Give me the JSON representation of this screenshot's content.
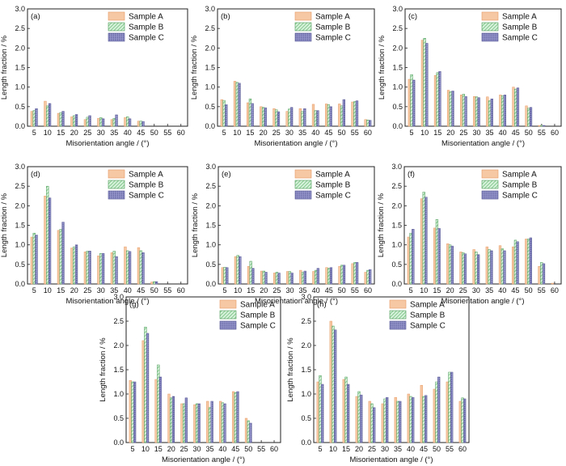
{
  "figure": {
    "legend_entries": [
      "Sample A",
      "Sample B",
      "Sample C"
    ]
  },
  "colors": {
    "sample_a": "#f6c8a4",
    "sample_a_stroke": "#e79a63",
    "sample_b_light": "#d8f1dc",
    "sample_b_stripe": "#6fbf7a",
    "sample_b_stroke": "#4a9a56",
    "sample_c_base": "#9a9ad0",
    "sample_c_dot": "#4e4e8c",
    "sample_c_stroke": "#545494",
    "axis": "#222222"
  },
  "chart_data": [
    {
      "type": "bar",
      "panel": "(a)",
      "categories": [
        "5",
        "10",
        "15",
        "20",
        "25",
        "30",
        "35",
        "40",
        "45",
        "50",
        "55",
        "60"
      ],
      "xlabel": "Misorientation angle / (°)",
      "ylabel": "Length fraction / %",
      "ylim": [
        0,
        3.0
      ],
      "yticks": [
        "0.0",
        "0.5",
        "1.0",
        "1.5",
        "2.0",
        "2.5",
        "3.0"
      ],
      "grid": false,
      "legend": "top-right",
      "series": [
        {
          "name": "Sample A",
          "values": [
            0.38,
            0.64,
            0.33,
            0.24,
            0.17,
            0.2,
            0.17,
            0.22,
            0.13,
            0,
            0,
            0
          ]
        },
        {
          "name": "Sample B",
          "values": [
            0.4,
            0.52,
            0.35,
            0.27,
            0.23,
            0.22,
            0.2,
            0.24,
            0.13,
            0,
            0,
            0
          ]
        },
        {
          "name": "Sample C",
          "values": [
            0.45,
            0.58,
            0.38,
            0.3,
            0.27,
            0.19,
            0.29,
            0.19,
            0.12,
            0,
            0,
            0
          ]
        }
      ]
    },
    {
      "type": "bar",
      "panel": "(b)",
      "categories": [
        "5",
        "10",
        "15",
        "20",
        "25",
        "30",
        "35",
        "40",
        "45",
        "50",
        "55",
        "60"
      ],
      "xlabel": "Misorientation angle / (°)",
      "ylabel": "Length fraction / %",
      "ylim": [
        0,
        3.0
      ],
      "yticks": [
        "0.0",
        "0.5",
        "1.0",
        "1.5",
        "2.0",
        "2.5",
        "3.0"
      ],
      "grid": false,
      "legend": "top-right",
      "series": [
        {
          "name": "Sample A",
          "values": [
            0.68,
            1.15,
            0.6,
            0.5,
            0.45,
            0.38,
            0.45,
            0.56,
            0.57,
            0.57,
            0.62,
            0.17
          ]
        },
        {
          "name": "Sample B",
          "values": [
            0.66,
            1.12,
            0.7,
            0.48,
            0.42,
            0.44,
            0.38,
            0.4,
            0.55,
            0.52,
            0.63,
            0.16
          ]
        },
        {
          "name": "Sample C",
          "values": [
            0.55,
            1.1,
            0.58,
            0.47,
            0.37,
            0.48,
            0.45,
            0.4,
            0.5,
            0.68,
            0.65,
            0.15
          ]
        }
      ]
    },
    {
      "type": "bar",
      "panel": "(c)",
      "categories": [
        "5",
        "10",
        "15",
        "20",
        "25",
        "30",
        "35",
        "40",
        "45",
        "50",
        "55",
        "60"
      ],
      "xlabel": "Misorientation angle / (°)",
      "ylabel": "Length fraction / %",
      "ylim": [
        0,
        3.0
      ],
      "yticks": [
        "0.0",
        "0.5",
        "1.0",
        "1.5",
        "2.0",
        "2.5",
        "3.0"
      ],
      "grid": false,
      "legend": "top-right",
      "series": [
        {
          "name": "Sample A",
          "values": [
            1.2,
            2.2,
            1.3,
            0.92,
            0.8,
            0.76,
            0.75,
            0.8,
            1.0,
            0.52,
            0.02,
            0
          ]
        },
        {
          "name": "Sample B",
          "values": [
            1.32,
            2.25,
            1.37,
            0.88,
            0.82,
            0.75,
            0.65,
            0.78,
            0.95,
            0.46,
            0.02,
            0
          ]
        },
        {
          "name": "Sample C",
          "values": [
            1.18,
            2.12,
            1.4,
            0.9,
            0.76,
            0.73,
            0.7,
            0.8,
            0.98,
            0.48,
            0.02,
            0
          ]
        }
      ]
    },
    {
      "type": "bar",
      "panel": "(d)",
      "categories": [
        "5",
        "10",
        "15",
        "20",
        "25",
        "30",
        "35",
        "40",
        "45",
        "50",
        "55",
        "60"
      ],
      "xlabel": "Misorientation angle / (°)",
      "ylabel": "Length fraction / %",
      "ylim": [
        0,
        3.0
      ],
      "yticks": [
        "0.0",
        "0.5",
        "1.0",
        "1.5",
        "2.0",
        "2.5",
        "3.0"
      ],
      "grid": false,
      "legend": "top-right",
      "series": [
        {
          "name": "Sample A",
          "values": [
            1.2,
            2.25,
            1.37,
            0.92,
            0.82,
            0.72,
            0.8,
            0.95,
            0.93,
            0.05,
            0,
            0
          ]
        },
        {
          "name": "Sample B",
          "values": [
            1.3,
            2.5,
            1.4,
            0.95,
            0.84,
            0.78,
            0.84,
            0.85,
            0.85,
            0.06,
            0,
            0
          ]
        },
        {
          "name": "Sample C",
          "values": [
            1.25,
            2.2,
            1.58,
            1.0,
            0.84,
            0.78,
            0.7,
            0.83,
            0.8,
            0.06,
            0,
            0
          ]
        }
      ]
    },
    {
      "type": "bar",
      "panel": "(e)",
      "categories": [
        "5",
        "10",
        "15",
        "20",
        "25",
        "30",
        "35",
        "40",
        "45",
        "50",
        "55",
        "60"
      ],
      "xlabel": "Misorientation angle / (°)",
      "ylabel": "Length fraction / %",
      "ylim": [
        0,
        3.0
      ],
      "yticks": [
        "0.0",
        "0.5",
        "1.0",
        "1.5",
        "2.0",
        "2.5",
        "3.0"
      ],
      "grid": false,
      "legend": "top-right",
      "series": [
        {
          "name": "Sample A",
          "values": [
            0.42,
            0.7,
            0.45,
            0.33,
            0.28,
            0.32,
            0.35,
            0.32,
            0.42,
            0.45,
            0.52,
            0.3
          ]
        },
        {
          "name": "Sample B",
          "values": [
            0.43,
            0.73,
            0.58,
            0.33,
            0.3,
            0.32,
            0.3,
            0.35,
            0.4,
            0.48,
            0.55,
            0.35
          ]
        },
        {
          "name": "Sample C",
          "values": [
            0.42,
            0.7,
            0.4,
            0.3,
            0.28,
            0.28,
            0.33,
            0.4,
            0.42,
            0.48,
            0.55,
            0.37
          ]
        }
      ]
    },
    {
      "type": "bar",
      "panel": "(f)",
      "categories": [
        "5",
        "10",
        "15",
        "20",
        "25",
        "30",
        "35",
        "40",
        "45",
        "50",
        "55",
        "60"
      ],
      "xlabel": "Misorientation angle / (°)",
      "ylabel": "Length fraction / %",
      "ylim": [
        0,
        3.0
      ],
      "yticks": [
        "0.0",
        "0.5",
        "1.0",
        "1.5",
        "2.0",
        "2.5",
        "3.0"
      ],
      "grid": false,
      "legend": "top-right",
      "series": [
        {
          "name": "Sample A",
          "values": [
            1.2,
            2.18,
            1.43,
            1.03,
            0.82,
            0.88,
            0.95,
            0.98,
            0.95,
            1.15,
            0.45,
            0.02
          ]
        },
        {
          "name": "Sample B",
          "values": [
            1.3,
            2.35,
            1.65,
            1.0,
            0.8,
            0.82,
            0.88,
            0.9,
            1.12,
            1.15,
            0.55,
            0
          ]
        },
        {
          "name": "Sample C",
          "values": [
            1.4,
            2.22,
            1.42,
            0.97,
            0.77,
            0.75,
            0.85,
            0.85,
            1.08,
            1.18,
            0.52,
            0
          ]
        }
      ]
    },
    {
      "type": "bar",
      "panel": "(g)",
      "categories": [
        "5",
        "10",
        "15",
        "20",
        "25",
        "30",
        "35",
        "40",
        "45",
        "50",
        "55",
        "60"
      ],
      "xlabel": "Misorientation angle / (°)",
      "ylabel": "Length fraction / %",
      "ylim": [
        0,
        3.0
      ],
      "yticks": [
        "0.0",
        "0.5",
        "1.0",
        "1.5",
        "2.0",
        "2.5",
        "3.0"
      ],
      "grid": false,
      "legend": "top-left",
      "series": [
        {
          "name": "Sample A",
          "values": [
            1.28,
            2.1,
            1.3,
            1.0,
            0.8,
            0.78,
            0.85,
            0.85,
            1.05,
            0.5,
            0,
            0
          ]
        },
        {
          "name": "Sample B",
          "values": [
            1.25,
            2.38,
            1.6,
            0.92,
            0.8,
            0.8,
            0.72,
            0.82,
            1.03,
            0.45,
            0,
            0
          ]
        },
        {
          "name": "Sample C",
          "values": [
            1.25,
            2.25,
            1.35,
            0.95,
            0.92,
            0.8,
            0.85,
            0.8,
            1.05,
            0.4,
            0,
            0
          ]
        }
      ]
    },
    {
      "type": "bar",
      "panel": "(h)",
      "categories": [
        "5",
        "10",
        "15",
        "20",
        "25",
        "30",
        "35",
        "40",
        "45",
        "50",
        "55",
        "60"
      ],
      "xlabel": "Misorientation angle / (°)",
      "ylabel": "Length fraction / %",
      "ylim": [
        0,
        3.0
      ],
      "yticks": [
        "0.0",
        "0.5",
        "1.0",
        "1.5",
        "2.0",
        "2.5",
        "3.0"
      ],
      "grid": false,
      "legend": "top-right",
      "series": [
        {
          "name": "Sample A",
          "values": [
            1.25,
            2.5,
            1.3,
            0.95,
            0.85,
            0.8,
            0.93,
            1.0,
            1.18,
            1.1,
            1.25,
            0.85
          ]
        },
        {
          "name": "Sample B",
          "values": [
            1.38,
            2.4,
            1.35,
            1.05,
            0.8,
            0.9,
            0.85,
            0.95,
            0.95,
            1.25,
            1.45,
            0.92
          ]
        },
        {
          "name": "Sample C",
          "values": [
            1.2,
            2.32,
            1.2,
            0.98,
            0.72,
            0.93,
            0.85,
            0.93,
            0.97,
            1.35,
            1.45,
            0.9
          ]
        }
      ]
    }
  ]
}
